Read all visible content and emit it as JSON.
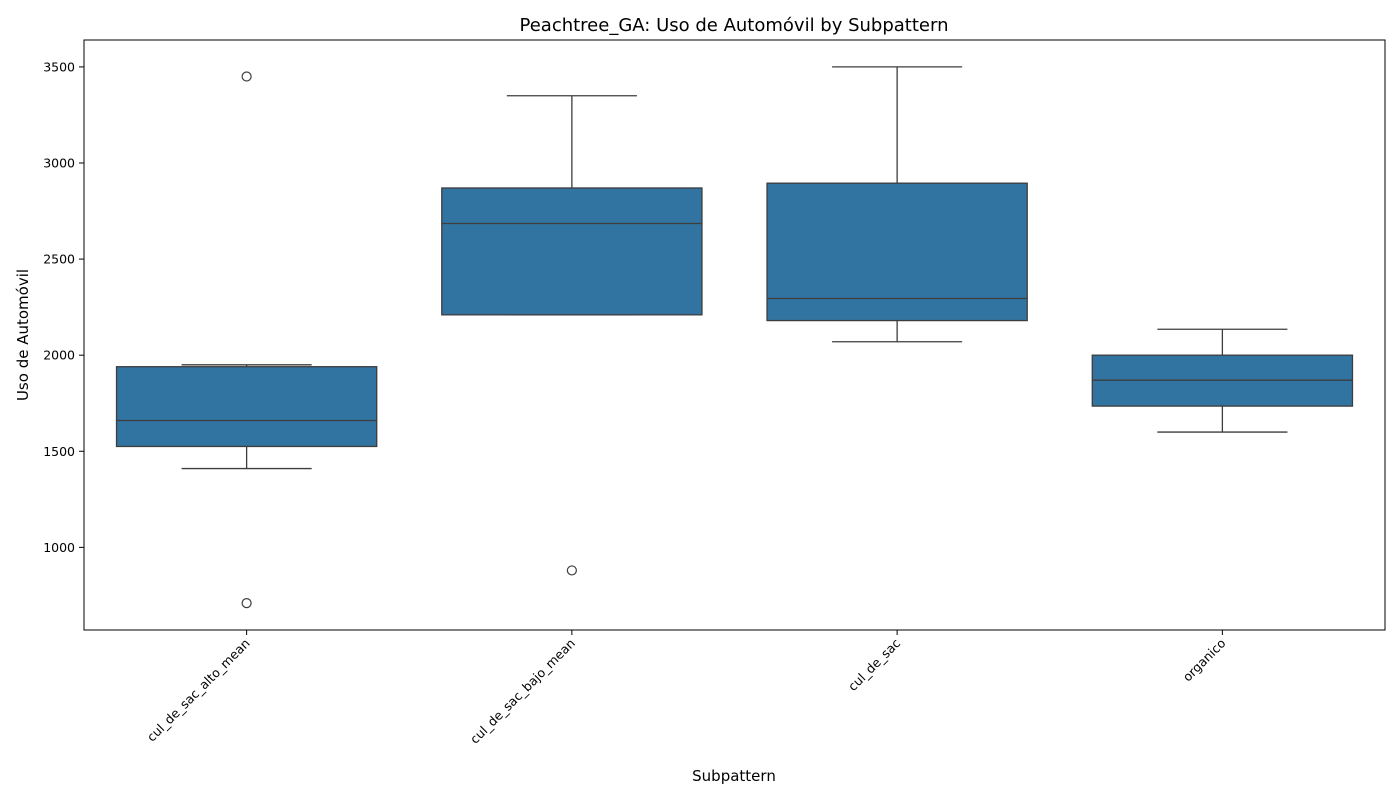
{
  "chart_data": {
    "type": "box",
    "title": "Peachtree_GA: Uso de Automóvil by Subpattern",
    "xlabel": "Subpattern",
    "ylabel": "Uso de Automóvil",
    "ylim": [
      570,
      3640
    ],
    "yticks": [
      "1000",
      "1500",
      "2000",
      "2500",
      "3000",
      "3500"
    ],
    "ytick_values": [
      1000,
      1500,
      2000,
      2500,
      3000,
      3500
    ],
    "categories": [
      "cul_de_sac_alto_mean",
      "cul_de_sac_bajo_mean",
      "cul_de_sac",
      "organico"
    ],
    "box_color": "#3274a1",
    "line_color": "#3d3d3d",
    "grid": false,
    "boxes": [
      {
        "whisker_low": 1410,
        "q1": 1525,
        "median": 1660,
        "q3": 1940,
        "whisker_high": 1950,
        "outliers": [
          3450,
          710
        ]
      },
      {
        "whisker_low": 2210,
        "q1": 2210,
        "median": 2685,
        "q3": 2870,
        "whisker_high": 3350,
        "outliers": [
          880
        ]
      },
      {
        "whisker_low": 2070,
        "q1": 2180,
        "median": 2295,
        "q3": 2895,
        "whisker_high": 3500,
        "outliers": []
      },
      {
        "whisker_low": 1600,
        "q1": 1735,
        "median": 1870,
        "q3": 2000,
        "whisker_high": 2135,
        "outliers": []
      }
    ]
  }
}
